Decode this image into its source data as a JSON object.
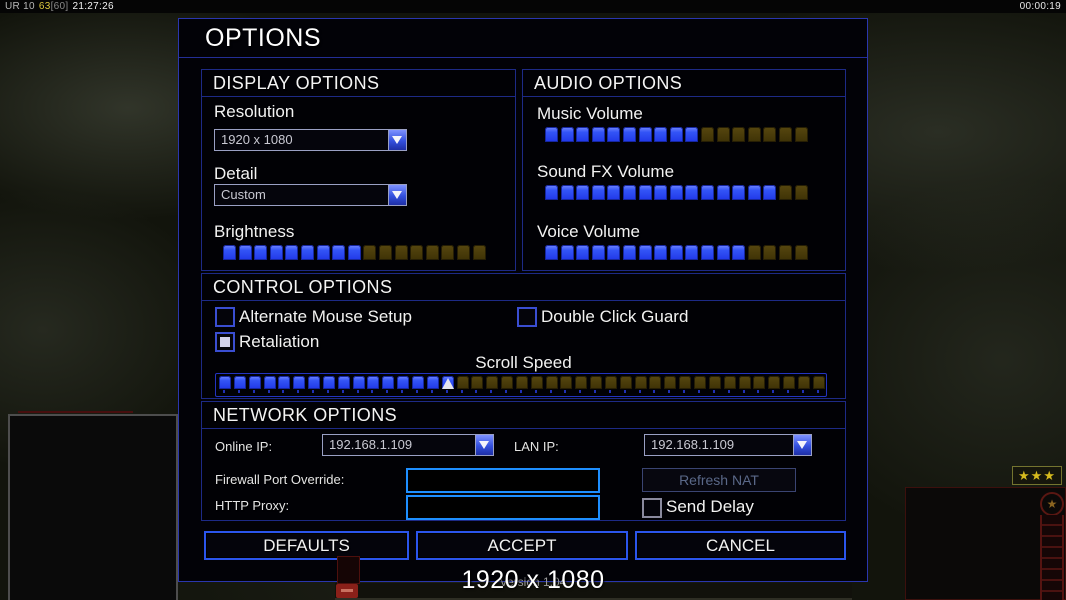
{
  "hud": {
    "session_label": "UR 10",
    "fps_value": "63",
    "fps_cap": "[60]",
    "clock": "21:27:26",
    "match_timer": "00:00:19",
    "rank_stars": "★★★",
    "emblem_star": "★"
  },
  "dialog": {
    "title": "OPTIONS",
    "display": {
      "header": "DISPLAY OPTIONS",
      "resolution_label": "Resolution",
      "resolution_value": "1920 x 1080",
      "detail_label": "Detail",
      "detail_value": "Custom",
      "brightness_label": "Brightness",
      "brightness_slider": {
        "filled": 9,
        "total": 17
      }
    },
    "audio": {
      "header": "AUDIO OPTIONS",
      "music_label": "Music Volume",
      "music_slider": {
        "filled": 10,
        "total": 17
      },
      "soundfx_label": "Sound FX Volume",
      "soundfx_slider": {
        "filled": 15,
        "total": 17
      },
      "voice_label": "Voice Volume",
      "voice_slider": {
        "filled": 13,
        "total": 17
      }
    },
    "control": {
      "header": "CONTROL OPTIONS",
      "alternate_mouse_label": "Alternate Mouse Setup",
      "alternate_mouse_checked": false,
      "double_click_label": "Double Click Guard",
      "double_click_checked": false,
      "retaliation_label": "Retaliation",
      "retaliation_checked": true,
      "scroll_speed_label": "Scroll Speed",
      "scroll_speed_slider": {
        "filled": 16,
        "total": 41
      }
    },
    "network": {
      "header": "NETWORK OPTIONS",
      "online_ip_label": "Online IP:",
      "online_ip_value": "192.168.1.109",
      "lan_ip_label": "LAN IP:",
      "lan_ip_value": "192.168.1.109",
      "firewall_label": "Firewall Port Override:",
      "firewall_value": "",
      "http_proxy_label": "HTTP Proxy:",
      "http_proxy_value": "",
      "refresh_nat_label": "Refresh NAT",
      "send_delay_label": "Send Delay",
      "send_delay_checked": false
    },
    "buttons": {
      "defaults": "DEFAULTS",
      "accept": "ACCEPT",
      "cancel": "CANCEL"
    },
    "footer": {
      "version_text": "Version 1.04",
      "resolution_overlay": "1920 x 1080"
    }
  },
  "colors": {
    "slider_on_blue": "#2f50f5",
    "slider_off_olive": "#473a08",
    "dialog_border_blue": "#2a36ae",
    "input_border_blue": "#1e8fff",
    "button_border_blue": "#2b55ec",
    "star_yellow": "#d6ba1e",
    "hud_fps_yellow": "#ddc93e"
  }
}
